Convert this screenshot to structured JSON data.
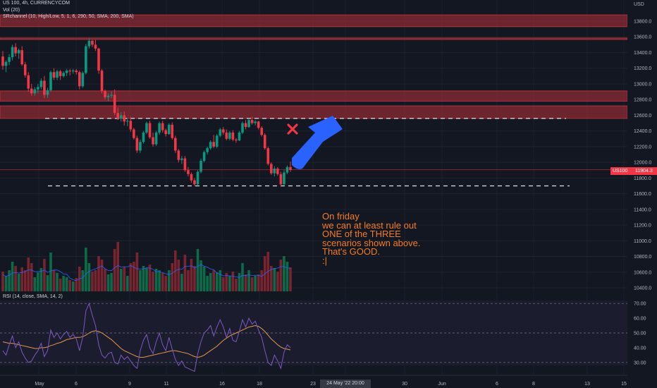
{
  "header": {
    "symbol_line": "US 100, 4h, CURRENCYCOM",
    "vol_line": "Vol (20)",
    "indicator_line": "SRchannel (10, High/Low, 5, 1, 6, 290, 50, SMA, 200, SMA)"
  },
  "rsi_header": "RSI (14, close, SMA, 14, 2)",
  "currency_label": "USD",
  "price_tag": {
    "symbol": "US100",
    "value": "11904.3"
  },
  "time_tag": "24 May '22  20:00",
  "note_lines": [
    "On friday",
    "we can at least rule out",
    "ONE of the THREE",
    "scenarios shown above.",
    "That's GOOD.",
    ":|"
  ],
  "colors": {
    "background": "#131722",
    "up_candle": "#089981",
    "down_candle": "#f23645",
    "sr_zone": "#8b2a33",
    "rsi_line": "#7e57c2",
    "rsi_ma": "#e5954a",
    "volume_ma": "#2962ff",
    "note_text": "#f57c24",
    "arrow": "#2962ff",
    "cross": "#f23645"
  },
  "chart_data": {
    "type": "candlestick",
    "symbol": "US 100",
    "timeframe": "4h",
    "price_axis": {
      "ticks": [
        10400,
        10600,
        10800,
        11000,
        11200,
        11400,
        11600,
        11800,
        12000,
        12200,
        12400,
        12600,
        12800,
        13000,
        13200,
        13400,
        13600,
        13800
      ],
      "range": [
        10300,
        13900
      ]
    },
    "x_axis_labels": [
      "May",
      "6",
      "9",
      "11",
      "16",
      "18",
      "23",
      "24 May '22  20:00",
      "30",
      "Jun",
      "6",
      "8",
      "13",
      "15"
    ],
    "last_price": 11904.3,
    "support_resistance_zones": [
      [
        13730,
        13880
      ],
      [
        13570,
        13585
      ],
      [
        12780,
        12910
      ],
      [
        12560,
        12720
      ]
    ],
    "dashed_levels": [
      12560,
      11700
    ],
    "candles_ohlc": [
      [
        13350,
        13420,
        13180,
        13230
      ],
      [
        13230,
        13300,
        13150,
        13280
      ],
      [
        13280,
        13380,
        13240,
        13340
      ],
      [
        13340,
        13500,
        13300,
        13470
      ],
      [
        13470,
        13520,
        13350,
        13390
      ],
      [
        13390,
        13450,
        13320,
        13430
      ],
      [
        13430,
        13480,
        13230,
        13250
      ],
      [
        13250,
        13280,
        13080,
        13110
      ],
      [
        13110,
        13150,
        12900,
        12940
      ],
      [
        12940,
        13000,
        12850,
        12880
      ],
      [
        12880,
        12960,
        12850,
        12930
      ],
      [
        12930,
        13000,
        12880,
        12960
      ],
      [
        12960,
        13070,
        12930,
        13040
      ],
      [
        13040,
        13100,
        12820,
        12860
      ],
      [
        12860,
        12950,
        12820,
        12920
      ],
      [
        12920,
        13170,
        12900,
        13150
      ],
      [
        13150,
        13200,
        13050,
        13080
      ],
      [
        13080,
        13180,
        13050,
        13160
      ],
      [
        13160,
        13180,
        13050,
        13100
      ],
      [
        13100,
        13160,
        13080,
        13140
      ],
      [
        13140,
        13190,
        13100,
        13170
      ],
      [
        13170,
        13190,
        13110,
        13160
      ],
      [
        13160,
        13190,
        13130,
        13170
      ],
      [
        13170,
        13190,
        13120,
        13150
      ],
      [
        13150,
        13170,
        12930,
        12970
      ],
      [
        12970,
        13160,
        12950,
        13140
      ],
      [
        13140,
        13510,
        13120,
        13480
      ],
      [
        13480,
        13580,
        13450,
        13550
      ],
      [
        13550,
        13560,
        13470,
        13500
      ],
      [
        13500,
        13560,
        13420,
        13450
      ],
      [
        13450,
        13460,
        13130,
        13170
      ],
      [
        13170,
        13190,
        12880,
        12910
      ],
      [
        12910,
        12930,
        12800,
        12830
      ],
      [
        12830,
        12880,
        12780,
        12850
      ],
      [
        12850,
        12900,
        12820,
        12860
      ],
      [
        12860,
        12930,
        12600,
        12630
      ],
      [
        12630,
        12700,
        12540,
        12560
      ],
      [
        12560,
        12640,
        12520,
        12600
      ],
      [
        12600,
        12650,
        12470,
        12520
      ],
      [
        12520,
        12570,
        12460,
        12530
      ],
      [
        12530,
        12580,
        12390,
        12420
      ],
      [
        12420,
        12440,
        12290,
        12310
      ],
      [
        12310,
        12340,
        12120,
        12150
      ],
      [
        12150,
        12290,
        12120,
        12260
      ],
      [
        12260,
        12400,
        12240,
        12380
      ],
      [
        12380,
        12520,
        12360,
        12500
      ],
      [
        12500,
        12530,
        12300,
        12320
      ],
      [
        12320,
        12380,
        12200,
        12230
      ],
      [
        12230,
        12400,
        12210,
        12380
      ],
      [
        12380,
        12520,
        12350,
        12500
      ],
      [
        12500,
        12530,
        12380,
        12410
      ],
      [
        12410,
        12430,
        12330,
        12360
      ],
      [
        12360,
        12500,
        12350,
        12480
      ],
      [
        12480,
        12510,
        12290,
        12310
      ],
      [
        12310,
        12340,
        12120,
        12150
      ],
      [
        12150,
        12170,
        12000,
        12030
      ],
      [
        12030,
        12080,
        11980,
        12050
      ],
      [
        12050,
        12080,
        11880,
        11900
      ],
      [
        11900,
        11940,
        11820,
        11850
      ],
      [
        11850,
        11870,
        11740,
        11770
      ],
      [
        11770,
        11800,
        11700,
        11720
      ],
      [
        11720,
        11900,
        11700,
        11880
      ],
      [
        11880,
        12050,
        11860,
        12020
      ],
      [
        12020,
        12150,
        12000,
        12130
      ],
      [
        12130,
        12200,
        12100,
        12180
      ],
      [
        12180,
        12280,
        12160,
        12260
      ],
      [
        12260,
        12350,
        12180,
        12200
      ],
      [
        12200,
        12360,
        12180,
        12340
      ],
      [
        12340,
        12440,
        12320,
        12420
      ],
      [
        12420,
        12450,
        12350,
        12380
      ],
      [
        12380,
        12420,
        12280,
        12300
      ],
      [
        12300,
        12400,
        12280,
        12380
      ],
      [
        12380,
        12410,
        12270,
        12290
      ],
      [
        12290,
        12310,
        12250,
        12280
      ],
      [
        12280,
        12400,
        12270,
        12380
      ],
      [
        12380,
        12520,
        12360,
        12500
      ],
      [
        12500,
        12540,
        12420,
        12450
      ],
      [
        12450,
        12560,
        12440,
        12540
      ],
      [
        12540,
        12580,
        12480,
        12500
      ],
      [
        12500,
        12540,
        12470,
        12520
      ],
      [
        12520,
        12530,
        12420,
        12440
      ],
      [
        12440,
        12460,
        12330,
        12350
      ],
      [
        12350,
        12370,
        12160,
        12180
      ],
      [
        12180,
        12200,
        11960,
        11980
      ],
      [
        11980,
        12000,
        11840,
        11860
      ],
      [
        11860,
        11950,
        11820,
        11920
      ],
      [
        11920,
        11940,
        11830,
        11850
      ],
      [
        11850,
        11880,
        11690,
        11720
      ],
      [
        11720,
        11900,
        11700,
        11870
      ],
      [
        11870,
        11960,
        11850,
        11940
      ],
      [
        11940,
        12010,
        11880,
        11904
      ]
    ],
    "volume": [
      [
        0.28,
        0
      ],
      [
        0.22,
        1
      ],
      [
        0.3,
        1
      ],
      [
        0.42,
        1
      ],
      [
        0.36,
        0
      ],
      [
        0.25,
        1
      ],
      [
        0.34,
        0
      ],
      [
        0.3,
        0
      ],
      [
        0.48,
        0
      ],
      [
        0.4,
        0
      ],
      [
        0.2,
        1
      ],
      [
        0.27,
        1
      ],
      [
        0.33,
        1
      ],
      [
        0.46,
        0
      ],
      [
        0.23,
        1
      ],
      [
        0.55,
        1
      ],
      [
        0.3,
        0
      ],
      [
        0.26,
        1
      ],
      [
        0.18,
        0
      ],
      [
        0.22,
        1
      ],
      [
        0.2,
        1
      ],
      [
        0.16,
        0
      ],
      [
        0.14,
        1
      ],
      [
        0.19,
        0
      ],
      [
        0.35,
        0
      ],
      [
        0.3,
        1
      ],
      [
        0.62,
        1
      ],
      [
        0.4,
        1
      ],
      [
        0.28,
        0
      ],
      [
        0.3,
        0
      ],
      [
        0.5,
        0
      ],
      [
        0.45,
        0
      ],
      [
        0.32,
        0
      ],
      [
        0.24,
        1
      ],
      [
        0.26,
        1
      ],
      [
        0.6,
        0
      ],
      [
        0.7,
        0
      ],
      [
        0.32,
        1
      ],
      [
        0.35,
        0
      ],
      [
        0.22,
        1
      ],
      [
        0.4,
        0
      ],
      [
        0.42,
        0
      ],
      [
        0.55,
        0
      ],
      [
        0.3,
        1
      ],
      [
        0.36,
        1
      ],
      [
        0.33,
        1
      ],
      [
        0.38,
        0
      ],
      [
        0.28,
        0
      ],
      [
        0.32,
        1
      ],
      [
        0.3,
        1
      ],
      [
        0.26,
        0
      ],
      [
        0.22,
        0
      ],
      [
        0.3,
        1
      ],
      [
        0.4,
        0
      ],
      [
        0.58,
        0
      ],
      [
        0.45,
        0
      ],
      [
        0.25,
        1
      ],
      [
        0.52,
        0
      ],
      [
        0.3,
        0
      ],
      [
        0.46,
        0
      ],
      [
        0.36,
        0
      ],
      [
        0.6,
        1
      ],
      [
        0.44,
        1
      ],
      [
        0.35,
        1
      ],
      [
        0.22,
        1
      ],
      [
        0.26,
        1
      ],
      [
        0.3,
        0
      ],
      [
        0.27,
        1
      ],
      [
        0.3,
        1
      ],
      [
        0.2,
        0
      ],
      [
        0.26,
        0
      ],
      [
        0.22,
        1
      ],
      [
        0.28,
        0
      ],
      [
        0.18,
        0
      ],
      [
        0.26,
        1
      ],
      [
        0.4,
        1
      ],
      [
        0.24,
        0
      ],
      [
        0.3,
        1
      ],
      [
        0.2,
        0
      ],
      [
        0.22,
        1
      ],
      [
        0.24,
        0
      ],
      [
        0.3,
        0
      ],
      [
        0.5,
        0
      ],
      [
        0.56,
        0
      ],
      [
        0.36,
        0
      ],
      [
        0.33,
        1
      ],
      [
        0.28,
        0
      ],
      [
        0.45,
        0
      ],
      [
        0.5,
        1
      ],
      [
        0.42,
        1
      ],
      [
        0.34,
        0
      ]
    ],
    "rsi": {
      "levels": [
        70,
        50,
        30
      ],
      "axis_ticks": [
        30,
        40,
        50,
        60,
        70
      ],
      "values": [
        38,
        35,
        42,
        48,
        40,
        44,
        37,
        33,
        30,
        31,
        35,
        38,
        43,
        34,
        38,
        52,
        47,
        50,
        46,
        49,
        51,
        47,
        49,
        46,
        38,
        47,
        65,
        70,
        62,
        55,
        42,
        35,
        33,
        36,
        37,
        30,
        29,
        35,
        32,
        34,
        31,
        28,
        26,
        38,
        45,
        49,
        40,
        36,
        44,
        50,
        42,
        38,
        47,
        39,
        32,
        28,
        31,
        27,
        26,
        25,
        24,
        36,
        44,
        50,
        52,
        55,
        48,
        54,
        59,
        54,
        47,
        53,
        45,
        44,
        51,
        59,
        54,
        60,
        56,
        58,
        52,
        47,
        38,
        30,
        28,
        35,
        31,
        26,
        37,
        42,
        40
      ],
      "ma": [
        44,
        43.5,
        43,
        43,
        42.5,
        42,
        41.5,
        41,
        40.5,
        40,
        39.5,
        39.5,
        40,
        40,
        40.5,
        41.5,
        42,
        43,
        43.5,
        44.5,
        45.5,
        46,
        46.5,
        47,
        47,
        47.5,
        48.5,
        50,
        51,
        51.5,
        51,
        50,
        48.5,
        47,
        45.5,
        43.5,
        41.5,
        39.5,
        38,
        37,
        36,
        35,
        34,
        33.5,
        33.5,
        34,
        34.5,
        35,
        35.5,
        36,
        36.5,
        37,
        37.5,
        38,
        38,
        37.5,
        37,
        36.5,
        36,
        35,
        34,
        33.5,
        34,
        35,
        36.5,
        38,
        39.5,
        41,
        43,
        45,
        46.5,
        48,
        49,
        50,
        51,
        52,
        53,
        54,
        54.5,
        55,
        54.5,
        53,
        51,
        48.5,
        46,
        44,
        42,
        40.5,
        39.5,
        39,
        38.5
      ]
    }
  }
}
